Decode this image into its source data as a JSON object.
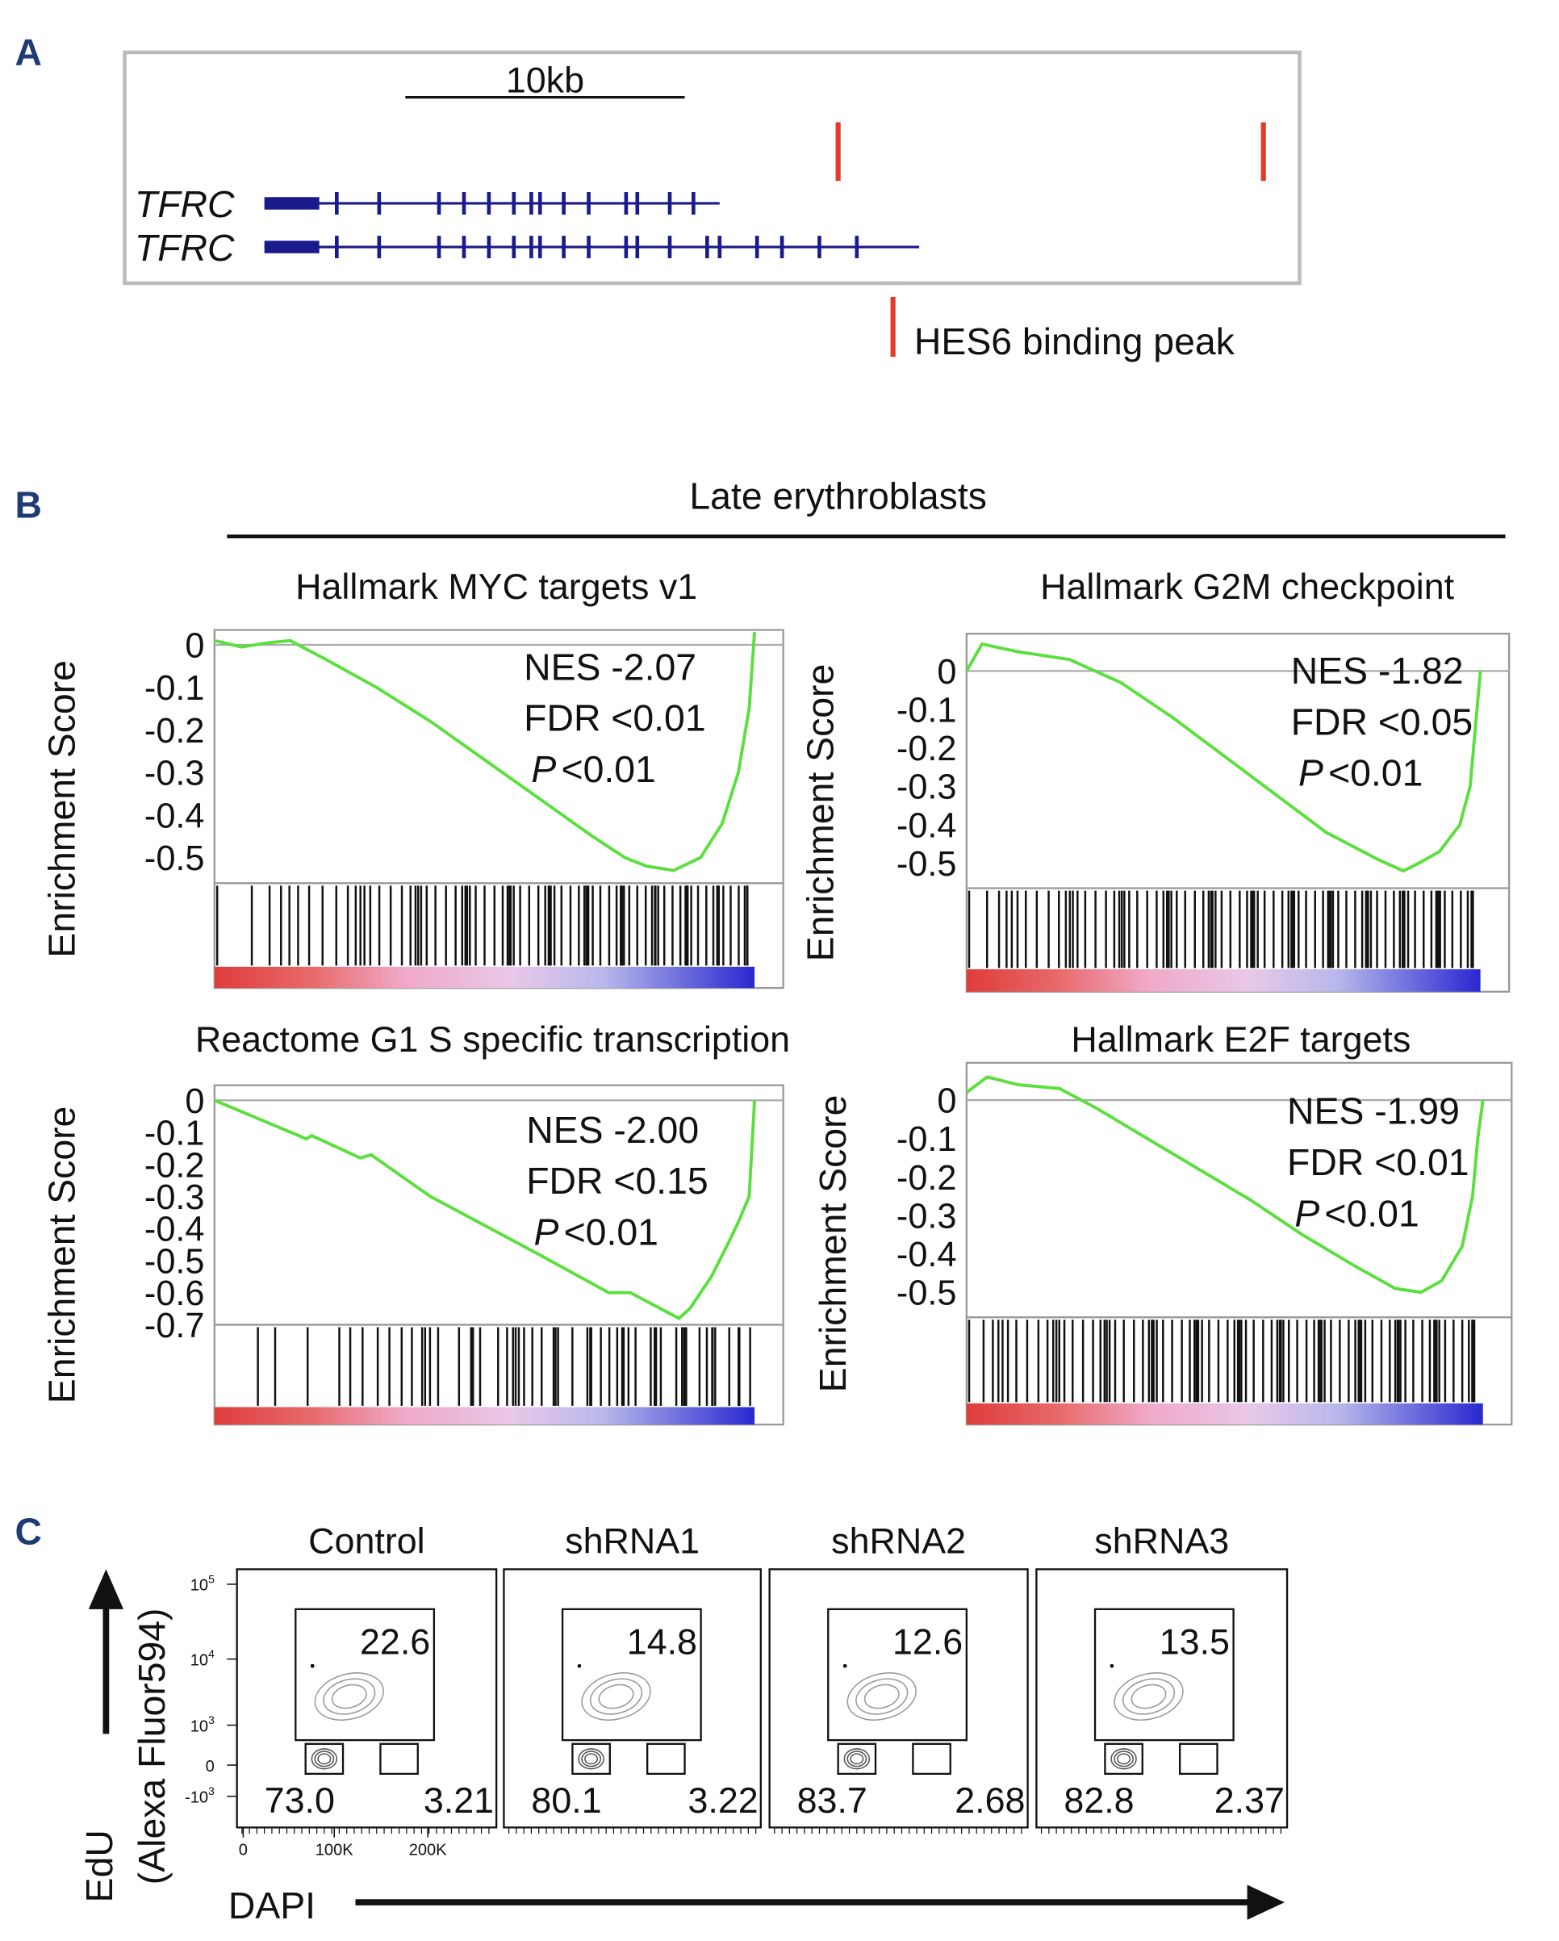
{
  "panel_a": {
    "label": "A",
    "scale_bar": "10kb",
    "tracks": [
      "TFRC",
      "TFRC"
    ],
    "legend": "HES6 binding peak"
  },
  "panel_b": {
    "label": "B",
    "header": "Late erythroblasts",
    "plots": [
      {
        "title": "Hallmark MYC targets v1",
        "y_label": "Enrichment Score",
        "ylim": [
          -0.56,
          0.035
        ],
        "yticks": [
          0,
          -0.1,
          -0.2,
          -0.3,
          -0.4,
          -0.5
        ],
        "x": [
          0,
          5,
          10,
          14,
          20,
          30,
          40,
          50,
          60,
          70,
          76,
          80,
          85,
          90,
          94,
          97,
          99,
          100
        ],
        "es": [
          0.01,
          -0.005,
          0.005,
          0.01,
          -0.03,
          -0.1,
          -0.18,
          -0.27,
          -0.36,
          -0.45,
          -0.5,
          -0.52,
          -0.53,
          -0.5,
          -0.42,
          -0.3,
          -0.15,
          0.03
        ],
        "nes": "NES -2.07",
        "fdr": "FDR <0.01",
        "p_symbol": "P",
        "p_value": "<0.01"
      },
      {
        "title": "Hallmark G2M checkpoint",
        "y_label": "Enrichment Score",
        "ylim": [
          -0.565,
          0.097
        ],
        "yticks": [
          0,
          -0.1,
          -0.2,
          -0.3,
          -0.4,
          -0.5
        ],
        "x": [
          0,
          3,
          10,
          20,
          30,
          40,
          50,
          60,
          70,
          80,
          85,
          88,
          92,
          96,
          98,
          99,
          100
        ],
        "es": [
          0,
          0.07,
          0.05,
          0.03,
          -0.03,
          -0.12,
          -0.22,
          -0.32,
          -0.42,
          -0.49,
          -0.52,
          -0.5,
          -0.47,
          -0.4,
          -0.3,
          -0.15,
          0
        ],
        "nes": "NES -1.82",
        "fdr": "FDR <0.05",
        "p_symbol": "P",
        "p_value": "<0.01"
      },
      {
        "title": "Reactome G1 S specific transcription",
        "y_label": "Enrichment Score",
        "ylim": [
          -0.7,
          0.047
        ],
        "yticks": [
          0,
          -0.1,
          -0.2,
          -0.3,
          -0.4,
          -0.5,
          -0.6,
          -0.7
        ],
        "x": [
          0,
          17,
          18,
          27,
          29,
          40,
          60,
          73,
          77,
          86,
          88,
          92,
          95,
          97,
          99,
          100
        ],
        "es": [
          0,
          -0.12,
          -0.11,
          -0.18,
          -0.17,
          -0.3,
          -0.48,
          -0.6,
          -0.6,
          -0.68,
          -0.65,
          -0.55,
          -0.45,
          -0.38,
          -0.3,
          0
        ],
        "nes": "NES -2.00",
        "fdr": "FDR <0.15",
        "p_symbol": "P",
        "p_value": "<0.01"
      },
      {
        "title": "Hallmark E2F targets",
        "y_label": "Enrichment Score",
        "ylim": [
          -0.565,
          0.097
        ],
        "yticks": [
          0,
          -0.1,
          -0.2,
          -0.3,
          -0.4,
          -0.5
        ],
        "x": [
          0,
          4,
          10,
          18,
          25,
          35,
          45,
          55,
          65,
          75,
          83,
          88,
          92,
          96,
          98,
          99,
          100
        ],
        "es": [
          0.02,
          0.06,
          0.04,
          0.03,
          -0.02,
          -0.1,
          -0.18,
          -0.26,
          -0.35,
          -0.43,
          -0.49,
          -0.5,
          -0.47,
          -0.38,
          -0.25,
          -0.1,
          0
        ],
        "nes": "NES -1.99",
        "fdr": "FDR <0.01",
        "p_symbol": "P",
        "p_value": "<0.01"
      }
    ]
  },
  "panel_c": {
    "label": "C",
    "y_label": [
      "EdU",
      "(Alexa Fluor594)"
    ],
    "x_label": "DAPI",
    "yticks": [
      {
        "base": "10",
        "exp": "5"
      },
      {
        "base": "10",
        "exp": "4"
      },
      {
        "base": "10",
        "exp": "3"
      },
      "0",
      {
        "base": "-10",
        "exp": "3"
      }
    ],
    "xticks": [
      "0",
      "100K",
      "200K"
    ],
    "samples": [
      {
        "name": "Control",
        "edu": "22.6",
        "g1": "73.0",
        "g2": "3.21"
      },
      {
        "name": "shRNA1",
        "edu": "14.8",
        "g1": "80.1",
        "g2": "3.22"
      },
      {
        "name": "shRNA2",
        "edu": "12.6",
        "g1": "83.7",
        "g2": "2.68"
      },
      {
        "name": "shRNA3",
        "edu": "13.5",
        "g1": "82.8",
        "g2": "2.37"
      }
    ]
  }
}
